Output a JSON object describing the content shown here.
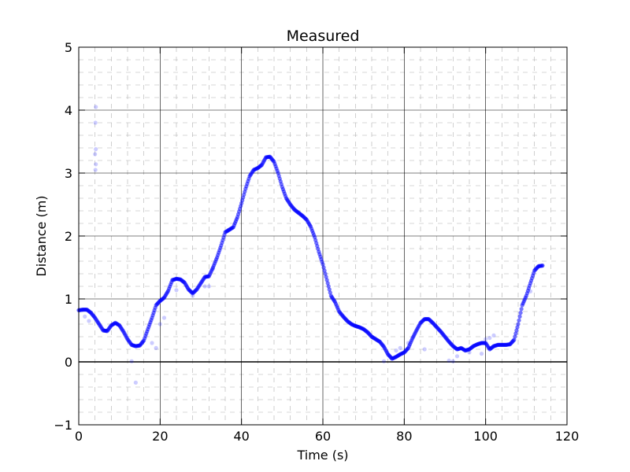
{
  "chart_data": {
    "type": "scatter",
    "title": "Measured",
    "xlabel": "Time (s)",
    "ylabel": "Distance (m)",
    "xlim": [
      0,
      120
    ],
    "ylim": [
      -1,
      5
    ],
    "x_ticks": [
      0,
      20,
      40,
      60,
      80,
      100,
      120
    ],
    "y_ticks": [
      -1,
      0,
      1,
      2,
      3,
      4,
      5
    ],
    "x_tick_labels": [
      "0",
      "20",
      "40",
      "60",
      "80",
      "100",
      "120"
    ],
    "y_tick_labels": [
      "−1",
      "0",
      "1",
      "2",
      "3",
      "4",
      "5"
    ],
    "major_grid": true,
    "minor_grid": true,
    "zero_line": true,
    "marker_color": "#0000ff",
    "series": [
      {
        "name": "",
        "points": [
          [
            0.0,
            0.82
          ],
          [
            1.0,
            0.83
          ],
          [
            2.0,
            0.83
          ],
          [
            3.0,
            0.78
          ],
          [
            4.0,
            0.7
          ],
          [
            5.0,
            0.6
          ],
          [
            6.0,
            0.5
          ],
          [
            7.0,
            0.49
          ],
          [
            8.0,
            0.58
          ],
          [
            9.0,
            0.62
          ],
          [
            10.0,
            0.58
          ],
          [
            11.0,
            0.48
          ],
          [
            12.0,
            0.36
          ],
          [
            13.0,
            0.27
          ],
          [
            14.0,
            0.25
          ],
          [
            15.0,
            0.26
          ],
          [
            16.0,
            0.34
          ],
          [
            17.0,
            0.52
          ],
          [
            18.0,
            0.7
          ],
          [
            19.0,
            0.9
          ],
          [
            20.0,
            0.97
          ],
          [
            21.0,
            1.02
          ],
          [
            22.0,
            1.13
          ],
          [
            23.0,
            1.3
          ],
          [
            24.0,
            1.32
          ],
          [
            25.0,
            1.31
          ],
          [
            26.0,
            1.26
          ],
          [
            27.0,
            1.15
          ],
          [
            28.0,
            1.09
          ],
          [
            29.0,
            1.15
          ],
          [
            30.0,
            1.25
          ],
          [
            31.0,
            1.35
          ],
          [
            32.0,
            1.36
          ],
          [
            33.0,
            1.5
          ],
          [
            34.0,
            1.66
          ],
          [
            35.0,
            1.85
          ],
          [
            36.0,
            2.06
          ],
          [
            37.0,
            2.1
          ],
          [
            38.0,
            2.14
          ],
          [
            39.0,
            2.3
          ],
          [
            40.0,
            2.52
          ],
          [
            41.0,
            2.75
          ],
          [
            42.0,
            2.95
          ],
          [
            43.0,
            3.05
          ],
          [
            44.0,
            3.08
          ],
          [
            45.0,
            3.13
          ],
          [
            46.0,
            3.25
          ],
          [
            47.0,
            3.26
          ],
          [
            48.0,
            3.18
          ],
          [
            49.0,
            3.0
          ],
          [
            50.0,
            2.78
          ],
          [
            51.0,
            2.6
          ],
          [
            52.0,
            2.5
          ],
          [
            53.0,
            2.42
          ],
          [
            54.0,
            2.37
          ],
          [
            55.0,
            2.32
          ],
          [
            56.0,
            2.26
          ],
          [
            57.0,
            2.15
          ],
          [
            58.0,
            1.98
          ],
          [
            59.0,
            1.75
          ],
          [
            60.0,
            1.55
          ],
          [
            61.0,
            1.3
          ],
          [
            62.0,
            1.05
          ],
          [
            63.0,
            0.95
          ],
          [
            64.0,
            0.8
          ],
          [
            65.0,
            0.72
          ],
          [
            66.0,
            0.65
          ],
          [
            67.0,
            0.6
          ],
          [
            68.0,
            0.57
          ],
          [
            69.0,
            0.55
          ],
          [
            70.0,
            0.52
          ],
          [
            71.0,
            0.47
          ],
          [
            72.0,
            0.4
          ],
          [
            73.0,
            0.36
          ],
          [
            74.0,
            0.32
          ],
          [
            75.0,
            0.24
          ],
          [
            76.0,
            0.12
          ],
          [
            77.0,
            0.05
          ],
          [
            78.0,
            0.08
          ],
          [
            79.0,
            0.12
          ],
          [
            80.0,
            0.15
          ],
          [
            81.0,
            0.22
          ],
          [
            82.0,
            0.37
          ],
          [
            83.0,
            0.5
          ],
          [
            84.0,
            0.62
          ],
          [
            85.0,
            0.68
          ],
          [
            86.0,
            0.68
          ],
          [
            87.0,
            0.62
          ],
          [
            88.0,
            0.55
          ],
          [
            89.0,
            0.48
          ],
          [
            90.0,
            0.4
          ],
          [
            91.0,
            0.32
          ],
          [
            92.0,
            0.25
          ],
          [
            93.0,
            0.2
          ],
          [
            94.0,
            0.22
          ],
          [
            95.0,
            0.18
          ],
          [
            96.0,
            0.2
          ],
          [
            97.0,
            0.25
          ],
          [
            98.0,
            0.28
          ],
          [
            99.0,
            0.3
          ],
          [
            100.0,
            0.3
          ],
          [
            101.0,
            0.2
          ],
          [
            102.0,
            0.25
          ],
          [
            103.0,
            0.27
          ],
          [
            104.0,
            0.27
          ],
          [
            105.0,
            0.27
          ],
          [
            106.0,
            0.28
          ],
          [
            107.0,
            0.35
          ],
          [
            108.0,
            0.6
          ],
          [
            109.0,
            0.9
          ],
          [
            110.0,
            1.05
          ],
          [
            111.0,
            1.25
          ],
          [
            112.0,
            1.45
          ],
          [
            113.0,
            1.52
          ],
          [
            114.0,
            1.53
          ]
        ],
        "faint_points": [
          [
            4.2,
            4.05
          ],
          [
            4.1,
            3.8
          ],
          [
            4.2,
            3.38
          ],
          [
            4.0,
            3.3
          ],
          [
            4.2,
            3.14
          ],
          [
            4.1,
            3.05
          ],
          [
            1.5,
            0.72
          ],
          [
            2.5,
            0.65
          ],
          [
            13.0,
            0.01
          ],
          [
            14.0,
            -0.33
          ],
          [
            18.0,
            0.3
          ],
          [
            19.0,
            0.22
          ],
          [
            20.0,
            0.6
          ],
          [
            21.0,
            0.7
          ],
          [
            24.0,
            1.14
          ],
          [
            28.0,
            1.05
          ],
          [
            31.0,
            1.2
          ],
          [
            32.0,
            1.2
          ],
          [
            33.0,
            1.48
          ],
          [
            75.0,
            0.01
          ],
          [
            78.0,
            0.18
          ],
          [
            79.0,
            0.22
          ],
          [
            81.0,
            0.3
          ],
          [
            85.0,
            0.2
          ],
          [
            91.0,
            0.02
          ],
          [
            92.0,
            0.01
          ],
          [
            93.0,
            0.09
          ],
          [
            96.0,
            0.15
          ],
          [
            99.0,
            0.13
          ],
          [
            100.0,
            0.36
          ],
          [
            101.0,
            0.38
          ],
          [
            102.0,
            0.42
          ],
          [
            111.0,
            1.12
          ]
        ]
      }
    ]
  }
}
